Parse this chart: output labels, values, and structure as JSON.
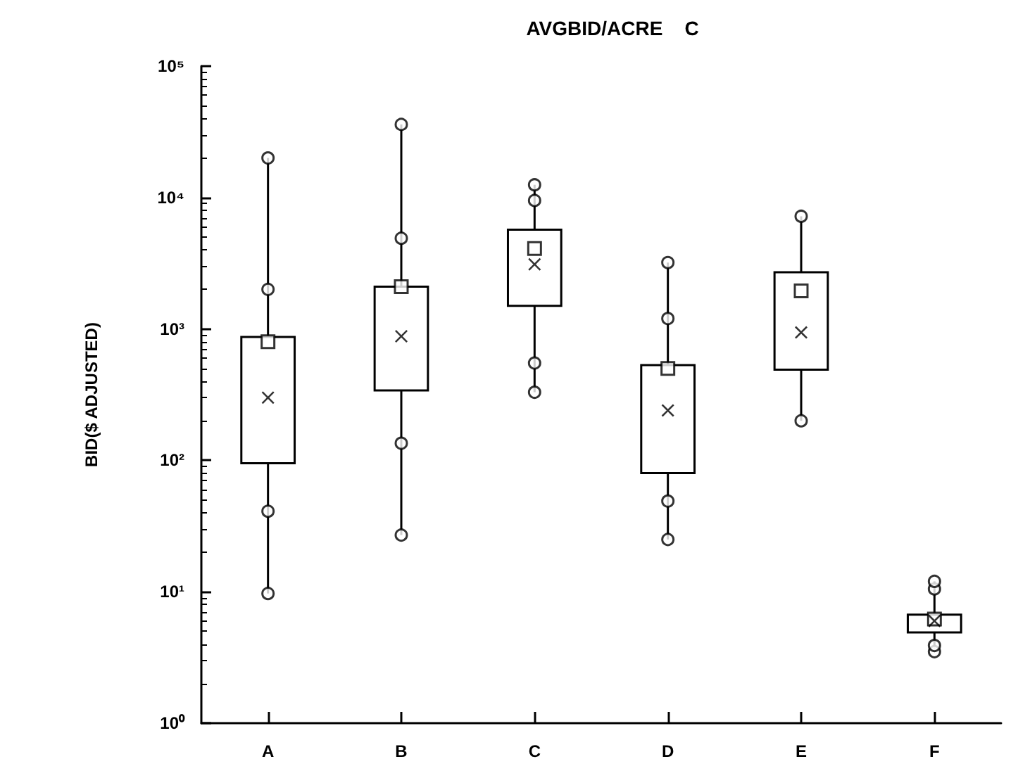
{
  "chart_data": {
    "type": "box",
    "title": "AVGBID/ACRE    C",
    "ylabel": "BID($ ADJUSTED)",
    "categories": [
      "A",
      "B",
      "C",
      "D",
      "E",
      "F"
    ],
    "boxes": [
      {
        "low": 9.7,
        "q1": 95,
        "median": 300,
        "q3": 870,
        "high": 20000,
        "mean": 800,
        "outliers": [
          9.7,
          41,
          2000,
          20000
        ]
      },
      {
        "low": 27,
        "q1": 340,
        "median": 880,
        "q3": 2100,
        "high": 36000,
        "mean": 2100,
        "outliers": [
          27,
          135,
          4900,
          36000
        ]
      },
      {
        "low": 330,
        "q1": 1500,
        "median": 3100,
        "q3": 5700,
        "high": 12500,
        "mean": 4100,
        "outliers": [
          330,
          550,
          9500,
          12500
        ]
      },
      {
        "low": 25,
        "q1": 80,
        "median": 240,
        "q3": 530,
        "high": 3200,
        "mean": 500,
        "outliers": [
          25,
          49,
          1200,
          3200
        ]
      },
      {
        "low": 200,
        "q1": 490,
        "median": 940,
        "q3": 2700,
        "high": 7200,
        "mean": 1950,
        "outliers": [
          200,
          7200
        ]
      },
      {
        "low": 3.5,
        "q1": 4.9,
        "median": 6,
        "q3": 6.7,
        "high": 12,
        "mean": 6.2,
        "outliers": [
          3.5,
          3.9,
          10.5,
          12
        ]
      }
    ],
    "color": "#000000",
    "log": true,
    "ylim": [
      1,
      100000
    ],
    "yticks": [
      {
        "value": 1,
        "label": "10⁰"
      },
      {
        "value": 10,
        "label": "10¹"
      },
      {
        "value": 100,
        "label": "10²"
      },
      {
        "value": 1000,
        "label": "10³"
      },
      {
        "value": 10000,
        "label": "10⁴"
      },
      {
        "value": 100000,
        "label": "10⁵"
      }
    ],
    "grid": false,
    "legend": false
  }
}
